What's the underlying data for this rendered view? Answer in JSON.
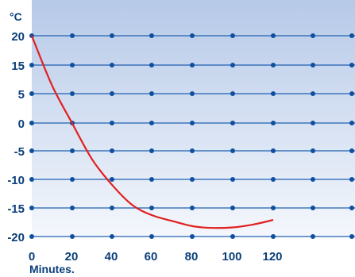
{
  "chart_data": {
    "type": "line",
    "title": "",
    "xlabel": "Minutes.",
    "ylabel": "°C",
    "x_ticks": [
      "0",
      "20",
      "40",
      "60",
      "80",
      "100",
      "120"
    ],
    "y_ticks": [
      "20",
      "15",
      "5",
      "0",
      "-5",
      "-10",
      "-15",
      "-20"
    ],
    "xlim": [
      0,
      160
    ],
    "grid": true,
    "series": [
      {
        "values_x": [
          0,
          10,
          20,
          30,
          40,
          50,
          60,
          70,
          80,
          90,
          100,
          110,
          120
        ],
        "values_y": [
          20,
          8,
          0,
          -6.5,
          -11,
          -14.5,
          -16.3,
          -17.3,
          -18.2,
          -18.5,
          -18.4,
          -17.9,
          -17.1
        ]
      }
    ],
    "colors": {
      "line": "#e02020",
      "grid": "#1f5fb0",
      "dots": "#0f4f9f",
      "background_top": "#b6c9e8",
      "background_bottom": "#f4f7fc",
      "text": "#0a3f7a"
    }
  }
}
